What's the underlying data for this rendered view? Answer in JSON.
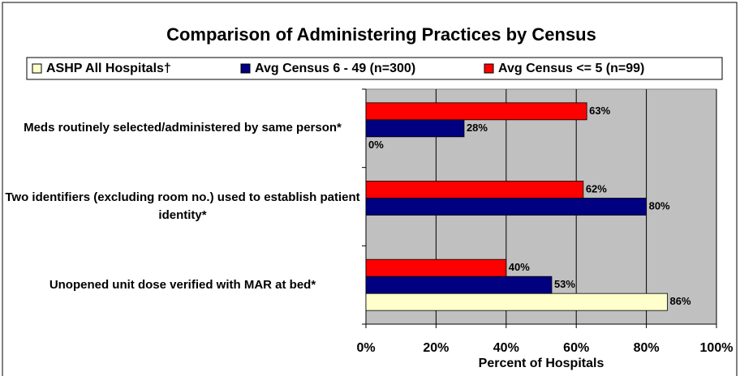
{
  "chart_data": {
    "type": "bar",
    "orientation": "horizontal",
    "title": "Comparison of Administering Practices by Census",
    "x_label": "Percent of Hospitals",
    "categories": [
      "Meds routinely selected/administered by same person*",
      "Two identifiers (excluding room no.) used to establish patient identity*",
      "Unopened unit dose verified with MAR at bed*"
    ],
    "series": [
      {
        "name": "ASHP All Hospitals†",
        "color": "#ffffcc",
        "values": [
          0,
          null,
          86
        ],
        "value_labels": [
          "0%",
          null,
          "86%"
        ]
      },
      {
        "name": "Avg Census 6 - 49 (n=300)",
        "color": "#000080",
        "values": [
          28,
          80,
          53
        ],
        "value_labels": [
          "28%",
          "80%",
          "53%"
        ]
      },
      {
        "name": "Avg Census <= 5 (n=99)",
        "color": "#ff0000",
        "values": [
          63,
          62,
          40
        ],
        "value_labels": [
          "63%",
          "62%",
          "40%"
        ]
      }
    ],
    "xlim": [
      0,
      100
    ],
    "xticks": [
      {
        "value": 0,
        "label": "0%"
      },
      {
        "value": 20,
        "label": "20%"
      },
      {
        "value": 40,
        "label": "40%"
      },
      {
        "value": 60,
        "label": "60%"
      },
      {
        "value": 80,
        "label": "80%"
      },
      {
        "value": 100,
        "label": "100%"
      }
    ],
    "grid": true,
    "plot_background": "#c0c0c0",
    "legend": "top"
  }
}
